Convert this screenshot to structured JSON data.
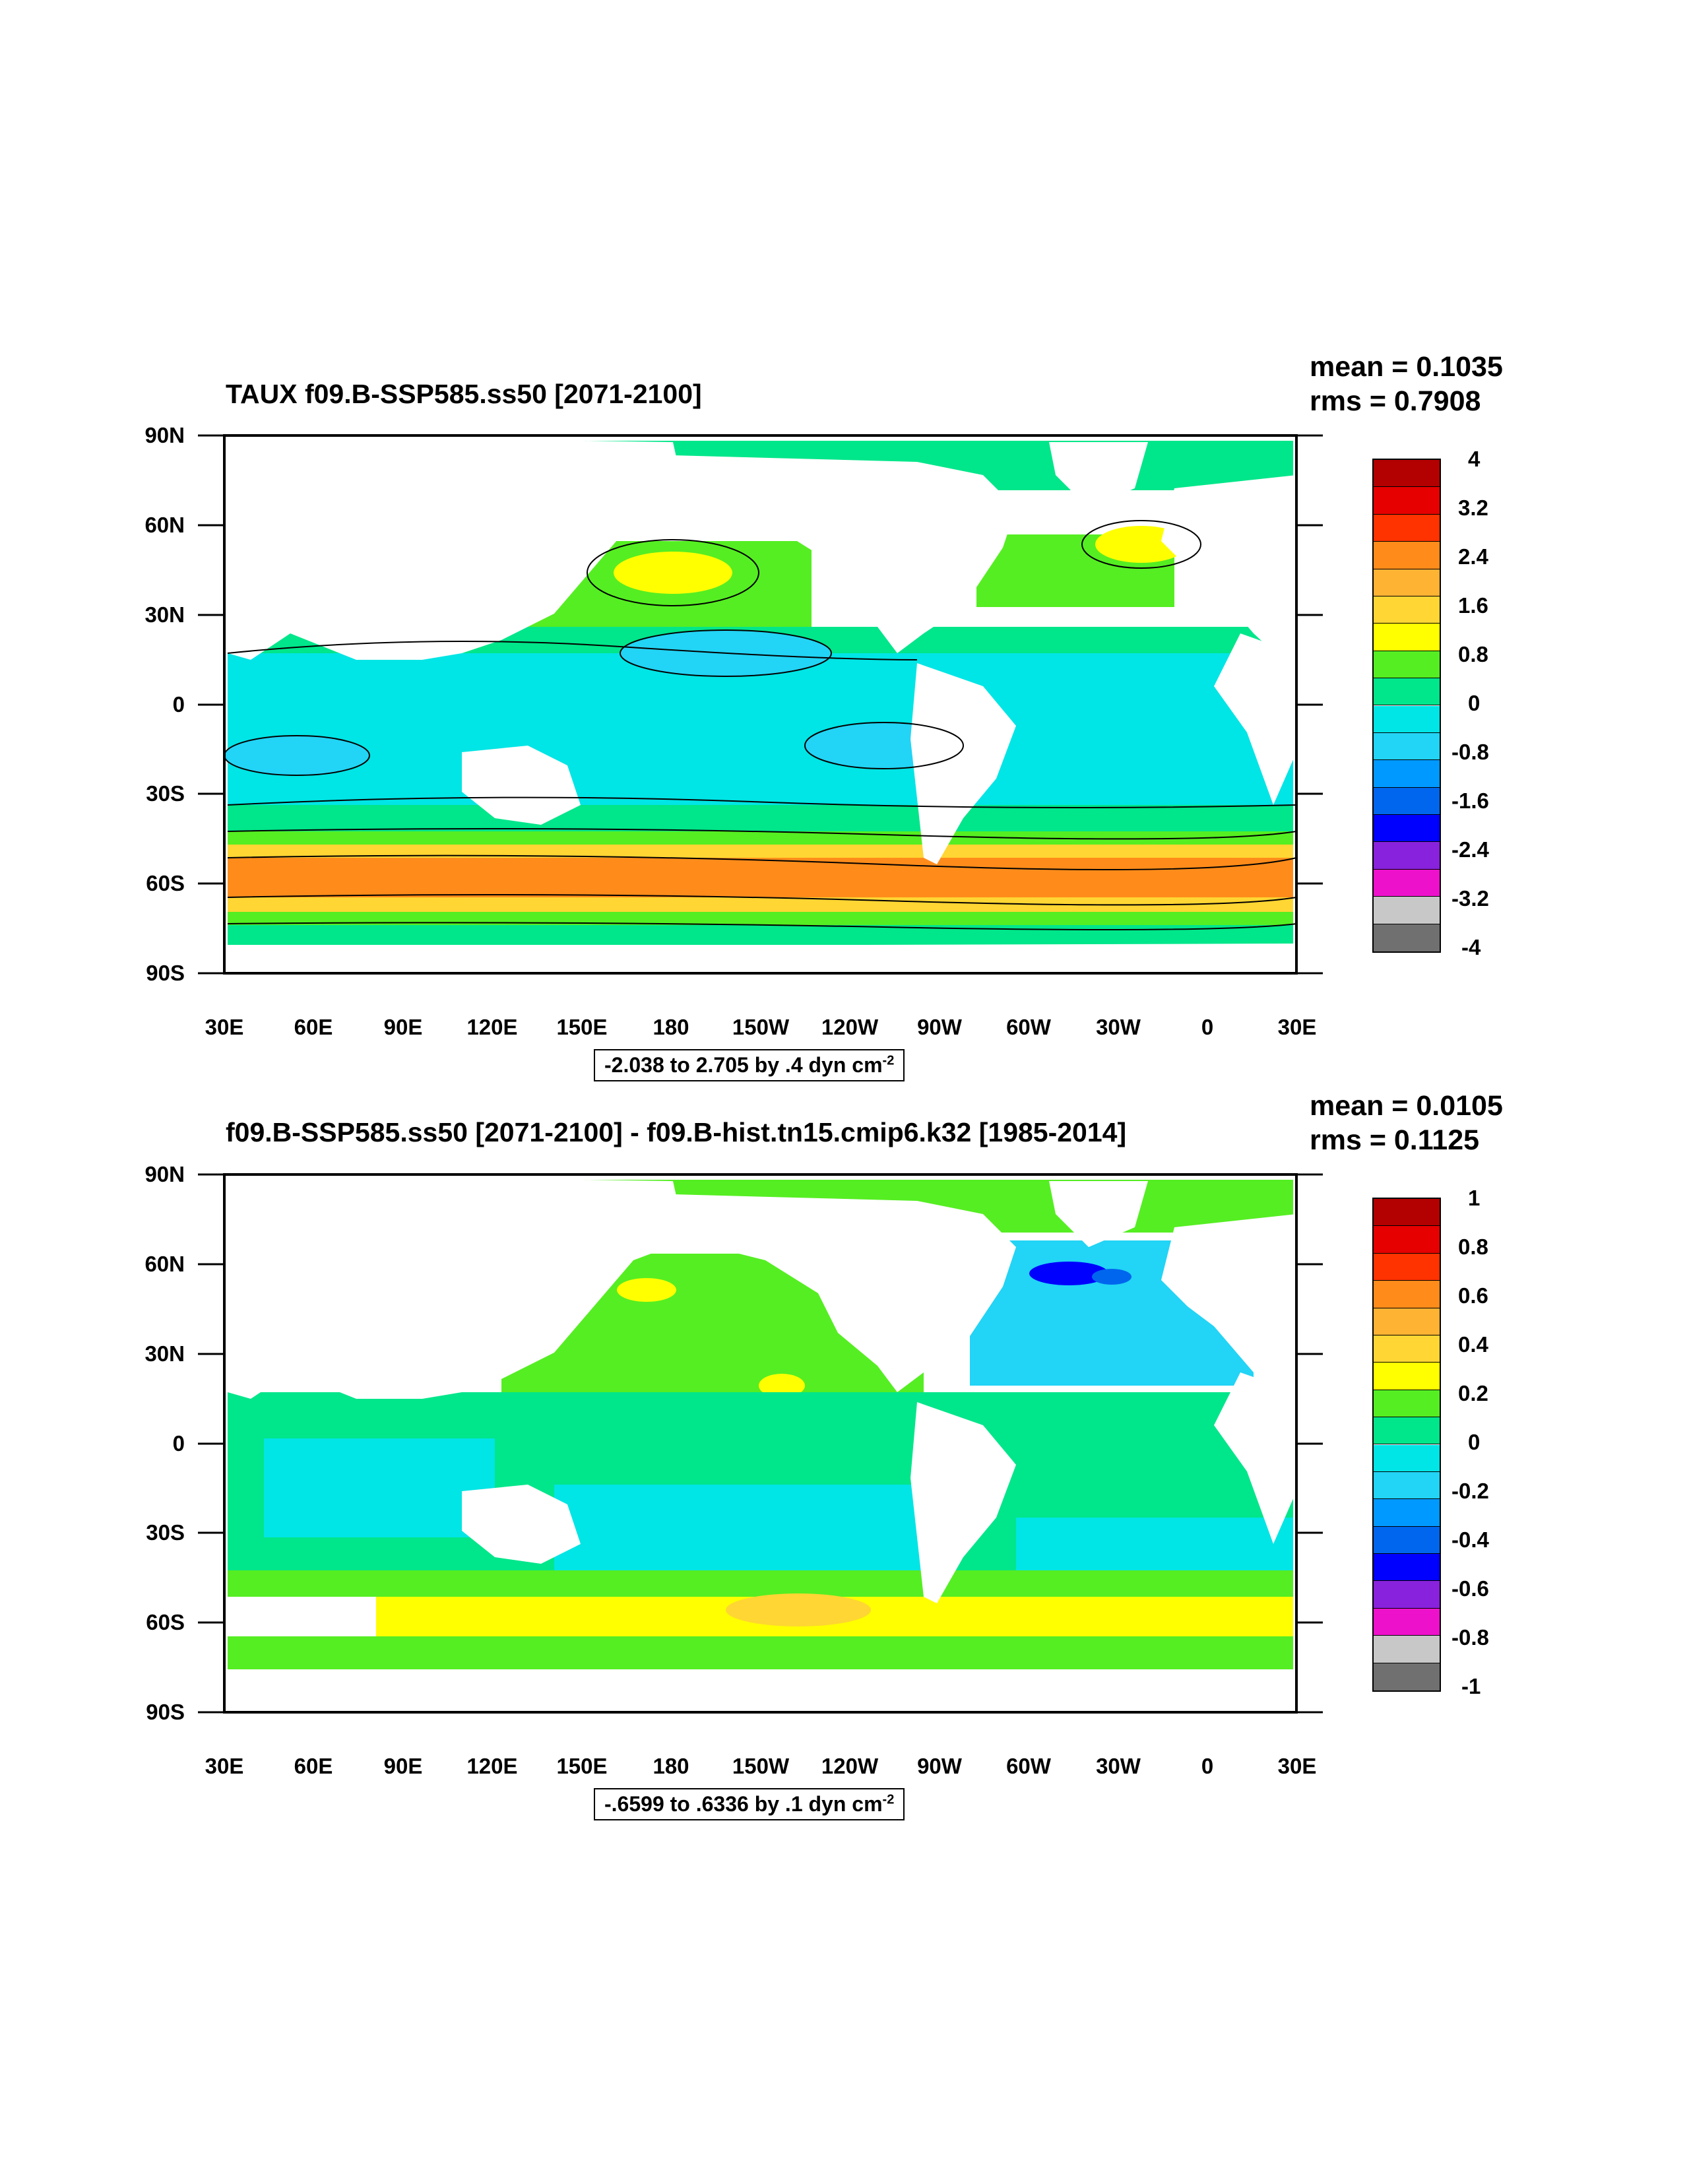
{
  "panels": [
    {
      "title": "TAUX f09.B-SSP585.ss50 [2071-2100]",
      "mean": "mean = 0.1035",
      "rms": "rms = 0.7908",
      "info_text": "-2.038 to 2.705 by .4 dyn cm",
      "info_exp": "-2",
      "lat_labels": [
        "90N",
        "60N",
        "30N",
        "0",
        "30S",
        "60S",
        "90S"
      ],
      "lon_labels": [
        "30E",
        "60E",
        "90E",
        "120E",
        "150E",
        "180",
        "150W",
        "120W",
        "90W",
        "60W",
        "30W",
        "0",
        "30E"
      ],
      "colorbar_labels": [
        "4",
        "3.2",
        "2.4",
        "1.6",
        "0.8",
        "0",
        "-0.8",
        "-1.6",
        "-2.4",
        "-3.2",
        "-4"
      ]
    },
    {
      "title": "f09.B-SSP585.ss50 [2071-2100] - f09.B-hist.tn15.cmip6.k32 [1985-2014]",
      "mean": "mean = 0.0105",
      "rms": "rms = 0.1125",
      "info_text": "-.6599 to .6336 by .1 dyn cm",
      "info_exp": "-2",
      "lat_labels": [
        "90N",
        "60N",
        "30N",
        "0",
        "30S",
        "60S",
        "90S"
      ],
      "lon_labels": [
        "30E",
        "60E",
        "90E",
        "120E",
        "150E",
        "180",
        "150W",
        "120W",
        "90W",
        "60W",
        "30W",
        "0",
        "30E"
      ],
      "colorbar_labels": [
        "1",
        "0.8",
        "0.6",
        "0.4",
        "0.2",
        "0",
        "-0.2",
        "-0.4",
        "-0.6",
        "-0.8",
        "-1"
      ]
    }
  ],
  "colorbar_colors": [
    "#b30000",
    "#e60000",
    "#ff3300",
    "#ff8c1a",
    "#ffb333",
    "#ffd633",
    "#ffff00",
    "#55ee22",
    "#00e68a",
    "#00e5e5",
    "#22d4f5",
    "#0099ff",
    "#0066ee",
    "#0000ff",
    "#8822dd",
    "#ee11cc",
    "#c8c8c8",
    "#707070"
  ]
}
